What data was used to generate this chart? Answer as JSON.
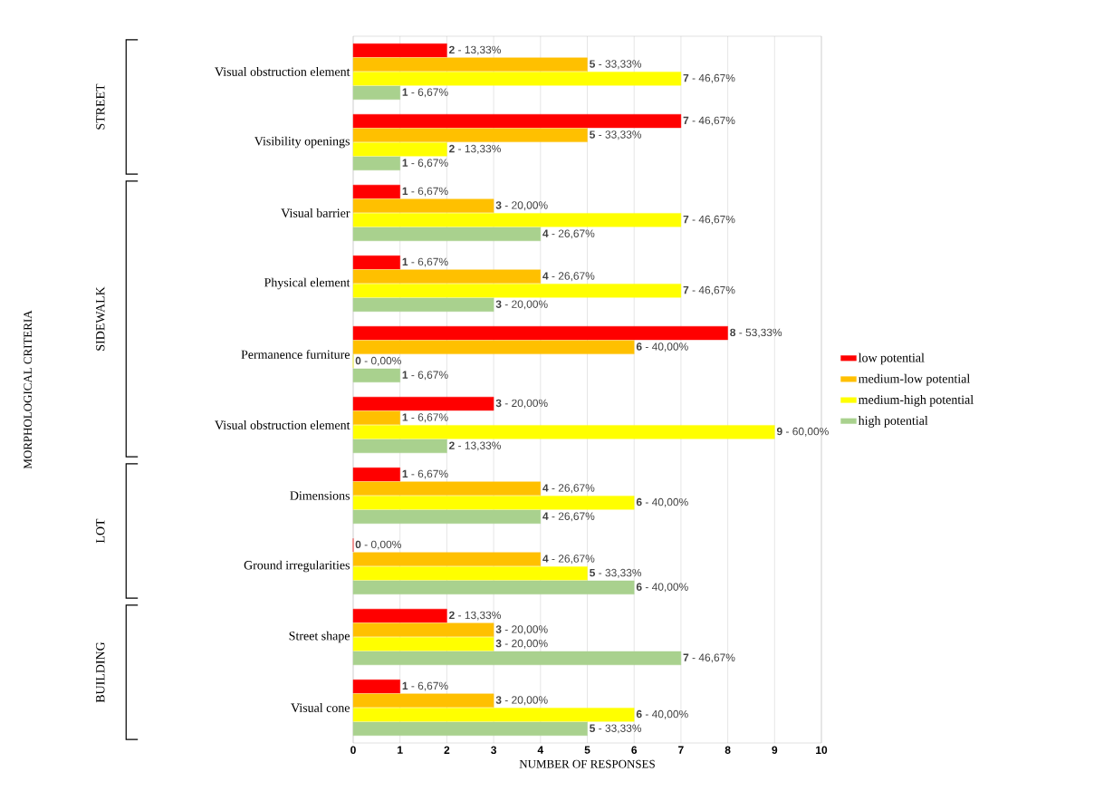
{
  "chart_data": {
    "type": "bar",
    "orientation": "horizontal",
    "xlabel": "NUMBER OF RESPONSES",
    "categories": [
      "Visual obstruction element",
      "Visibility openings",
      "Visual barrier",
      "Physical element",
      "Permanence furniture",
      "Visual obstruction element",
      "Dimensions",
      "Ground irregularities",
      "Street shape",
      "Visual cone"
    ],
    "series": [
      {
        "name": "low potential",
        "color": "#ff0000",
        "values": [
          2,
          7,
          1,
          1,
          8,
          3,
          1,
          0,
          2,
          1
        ],
        "value_labels": [
          "**2** - 13,33%",
          "**7** - 46,67%",
          "**1** - 6,67%",
          "**1** - 6,67%",
          "**8** - 53,33%",
          "**3** - 20,00%",
          "**1** - 6,67%",
          "**0** - 0,00%",
          "**2** - 13,33%",
          "**1** - 6,67%"
        ]
      },
      {
        "name": "medium-low potential",
        "color": "#ffc000",
        "values": [
          5,
          5,
          3,
          4,
          6,
          1,
          4,
          4,
          3,
          3
        ],
        "value_labels": [
          "**5** - 33,33%",
          "**5** - 33,33%",
          "**3** - 20,00%",
          "**4** - 26,67%",
          "**6** - 40,00%",
          "**1** - 6,67%",
          "**4** - 26,67%",
          "**4** - 26,67%",
          "**3** - 20,00%",
          "**3** - 20,00%"
        ]
      },
      {
        "name": "medium-high potential",
        "color": "#ffff00",
        "values": [
          7,
          2,
          7,
          7,
          0,
          9,
          6,
          5,
          3,
          6
        ],
        "value_labels": [
          "**7** - 46,67%",
          "**2** - 13,33%",
          "**7** - 46,67%",
          "**7** - 46,67%",
          "**0** - 0,00%",
          "**9** - 60,00%",
          "**6** - 40,00%",
          "**5** - 33,33%",
          "**3** - 20,00%",
          "**6** - 40,00%"
        ]
      },
      {
        "name": "high potential",
        "color": "#a9d18e",
        "values": [
          1,
          1,
          4,
          3,
          1,
          2,
          4,
          6,
          7,
          5
        ],
        "value_labels": [
          "**1** - 6,67%",
          "**1** - 6,67%",
          "**4** - 26,67%",
          "**3** - 20,00%",
          "**1** - 6,67%",
          "**2** - 13,33%",
          "**4** - 26,67%",
          "**6** - 40,00%",
          "**7** - 46,67%",
          "**5** - 33,33%"
        ]
      }
    ],
    "xlim": [
      0,
      10
    ],
    "xticks": [
      0,
      1,
      2,
      3,
      4,
      5,
      6,
      7,
      8,
      9,
      10
    ],
    "grid": "x",
    "legend": "right",
    "annotations": [
      "MORPHOLOGICAL CRITERIA",
      "STREET",
      "SIDEWALK",
      "LOT",
      "BUILDING"
    ]
  }
}
